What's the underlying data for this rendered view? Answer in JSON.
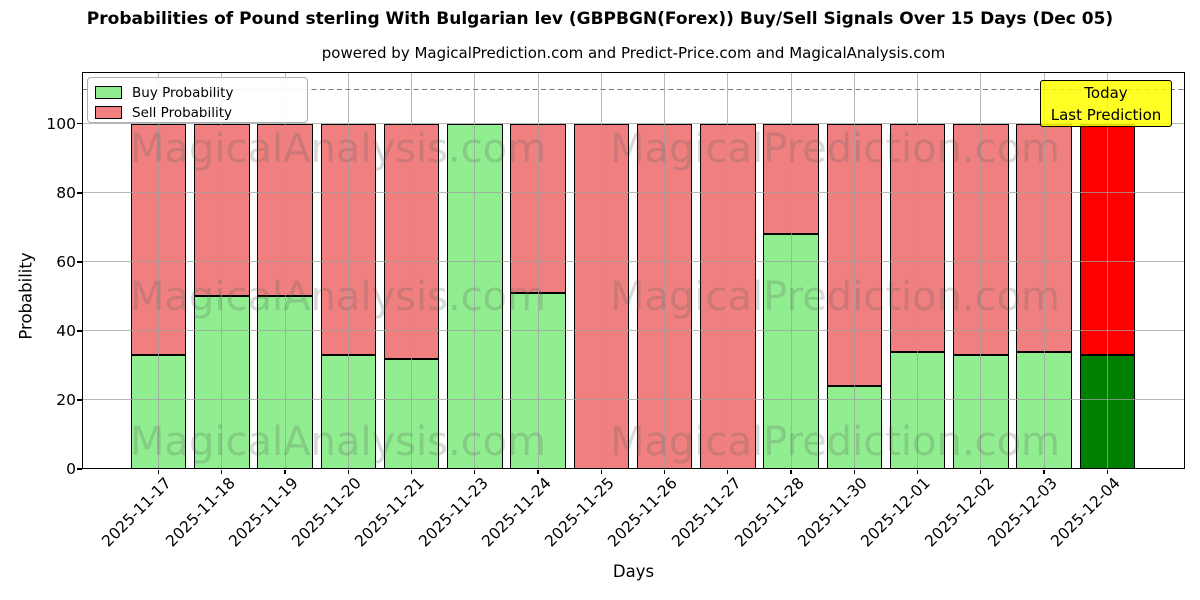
{
  "title": "Probabilities of Pound sterling With Bulgarian lev (GBPBGN(Forex)) Buy/Sell Signals Over 15 Days (Dec 05)",
  "subtitle": "powered by MagicalPrediction.com and Predict-Price.com and MagicalAnalysis.com",
  "legend": {
    "buy_label": "Buy Probability",
    "sell_label": "Sell Probability"
  },
  "annotation": {
    "line1": "Today",
    "line2": "Last Prediction"
  },
  "watermarks": {
    "left": "MagicalAnalysis.com",
    "right": "MagicalPrediction.com"
  },
  "colors": {
    "buy": "#90ee90",
    "sell": "#f08080",
    "today_buy": "#008000",
    "today_sell": "#ff0000",
    "grid": "#a0a0a0",
    "dashed_line": "#777777",
    "annotation_bg": "#ffff00"
  },
  "chart_data": {
    "type": "bar",
    "stacked": true,
    "title": "Probabilities of Pound sterling With Bulgarian lev (GBPBGN(Forex)) Buy/Sell Signals Over 15 Days (Dec 05)",
    "xlabel": "Days",
    "ylabel": "Probability",
    "ylim": [
      0,
      115
    ],
    "yticks": [
      0,
      20,
      40,
      60,
      80,
      100
    ],
    "dashed_line_y": 110,
    "grid": true,
    "legend_position": "upper left",
    "categories": [
      "2025-11-17",
      "2025-11-18",
      "2025-11-19",
      "2025-11-20",
      "2025-11-21",
      "2025-11-23",
      "2025-11-24",
      "2025-11-25",
      "2025-11-26",
      "2025-11-27",
      "2025-11-28",
      "2025-11-30",
      "2025-12-01",
      "2025-12-02",
      "2025-12-03",
      "2025-12-04"
    ],
    "series": [
      {
        "name": "Buy Probability",
        "values": [
          33,
          50,
          50,
          33,
          32,
          100,
          51,
          0,
          0,
          0,
          68,
          24,
          34,
          33,
          34,
          33
        ]
      },
      {
        "name": "Sell Probability",
        "values": [
          67,
          50,
          50,
          67,
          68,
          0,
          49,
          100,
          100,
          100,
          32,
          76,
          66,
          67,
          66,
          67
        ]
      }
    ],
    "today_index": 15
  }
}
